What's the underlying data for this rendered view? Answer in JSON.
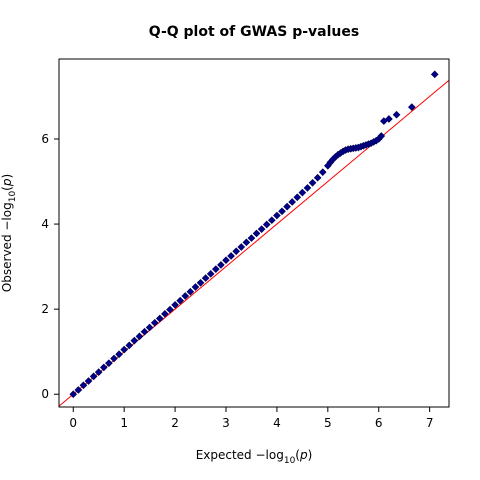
{
  "chart_data": {
    "type": "scatter",
    "title": "Q-Q plot of GWAS p-values",
    "xlabel": {
      "prefix": "Expected  −log",
      "sub": "10",
      "open": "(",
      "var": "p",
      "close": ")"
    },
    "ylabel": {
      "prefix": "Observed  −log",
      "sub": "10",
      "open": "(",
      "var": "p",
      "close": ")"
    },
    "xlim": [
      -0.28,
      7.38
    ],
    "ylim": [
      -0.3,
      7.88
    ],
    "xticks": [
      0,
      1,
      2,
      3,
      4,
      5,
      6,
      7
    ],
    "yticks": [
      0,
      2,
      4,
      6
    ],
    "grid": false,
    "reference_line": {
      "slope": 1,
      "intercept": 0,
      "color": "#ff0000"
    },
    "marker": {
      "shape": "diamond",
      "fill": "#00008b",
      "stroke": "#000050"
    },
    "series": [
      {
        "x": [
          0.0,
          0.1,
          0.2,
          0.3,
          0.4,
          0.5,
          0.6,
          0.7,
          0.8,
          0.9,
          1.0,
          1.1,
          1.2,
          1.3,
          1.4,
          1.5,
          1.6,
          1.7,
          1.8,
          1.9,
          2.0,
          2.1,
          2.2,
          2.3,
          2.4,
          2.5,
          2.6,
          2.7,
          2.8,
          2.9,
          3.0,
          3.1,
          3.2,
          3.3,
          3.4,
          3.5,
          3.6,
          3.7,
          3.8,
          3.9,
          4.0,
          4.1,
          4.2,
          4.3,
          4.4,
          4.5,
          4.6,
          4.7,
          4.8,
          4.9,
          5.0,
          5.05,
          5.1,
          5.15,
          5.2,
          5.25,
          5.3,
          5.35,
          5.4,
          5.45,
          5.5,
          5.55,
          5.6,
          5.65,
          5.7,
          5.75,
          5.8,
          5.85,
          5.9,
          5.95,
          6.0,
          6.05,
          6.1,
          6.2,
          6.35,
          6.65,
          7.1
        ],
        "y": [
          0.0,
          0.1,
          0.21,
          0.31,
          0.42,
          0.52,
          0.63,
          0.73,
          0.84,
          0.94,
          1.05,
          1.15,
          1.26,
          1.36,
          1.47,
          1.57,
          1.68,
          1.78,
          1.89,
          1.99,
          2.1,
          2.2,
          2.31,
          2.41,
          2.52,
          2.62,
          2.73,
          2.83,
          2.94,
          3.04,
          3.15,
          3.25,
          3.36,
          3.46,
          3.57,
          3.67,
          3.78,
          3.88,
          3.99,
          4.09,
          4.2,
          4.3,
          4.41,
          4.52,
          4.63,
          4.74,
          4.85,
          4.97,
          5.09,
          5.22,
          5.37,
          5.45,
          5.52,
          5.58,
          5.63,
          5.67,
          5.71,
          5.74,
          5.76,
          5.77,
          5.78,
          5.79,
          5.8,
          5.82,
          5.84,
          5.86,
          5.88,
          5.9,
          5.93,
          5.96,
          6.0,
          6.07,
          6.42,
          6.47,
          6.57,
          6.75,
          7.52
        ]
      }
    ]
  }
}
